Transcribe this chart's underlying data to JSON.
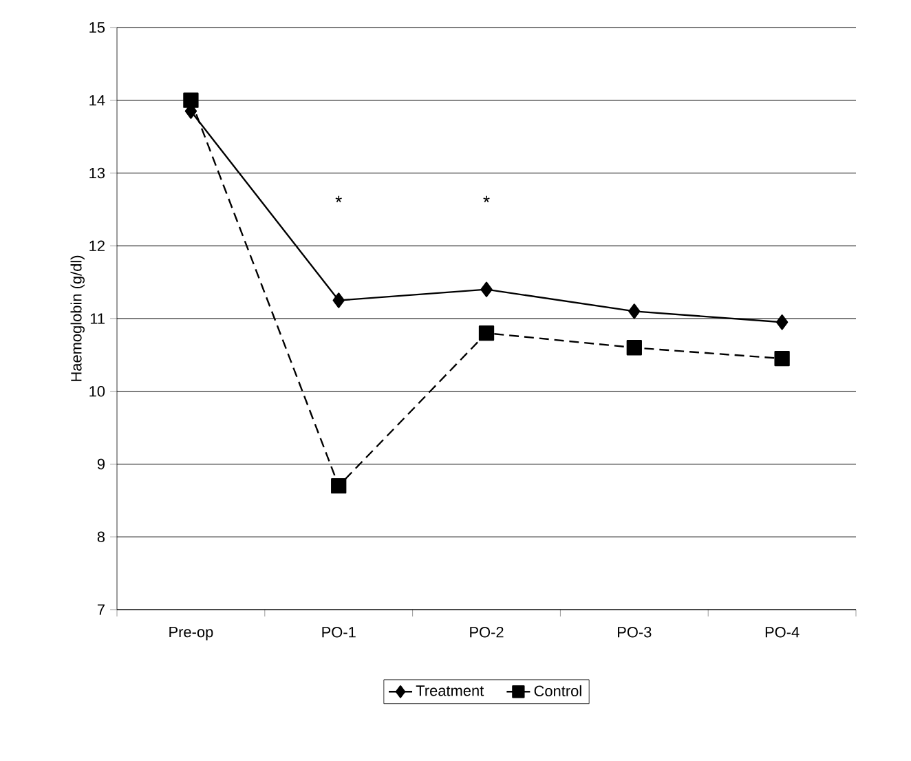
{
  "chart_data": {
    "type": "line",
    "ylabel": "Haemoglobin (g/dl)",
    "categories": [
      "Pre-op",
      "PO-1",
      "PO-2",
      "PO-3",
      "PO-4"
    ],
    "series": [
      {
        "name": "Treatment",
        "color": "#000000",
        "values": [
          13.85,
          11.25,
          11.4,
          11.1,
          10.95
        ],
        "marker": "diamond",
        "line_style": "solid"
      },
      {
        "name": "Control",
        "color": "#000000",
        "values": [
          14.0,
          8.7,
          10.8,
          10.6,
          10.45
        ],
        "marker": "square",
        "line_style": "dashed"
      }
    ],
    "ylim": [
      7,
      15
    ],
    "yticks": [
      7,
      8,
      9,
      10,
      11,
      12,
      13,
      14,
      15
    ],
    "grid": "y",
    "legend": "bottom",
    "annotations": [
      "*",
      "*"
    ]
  }
}
